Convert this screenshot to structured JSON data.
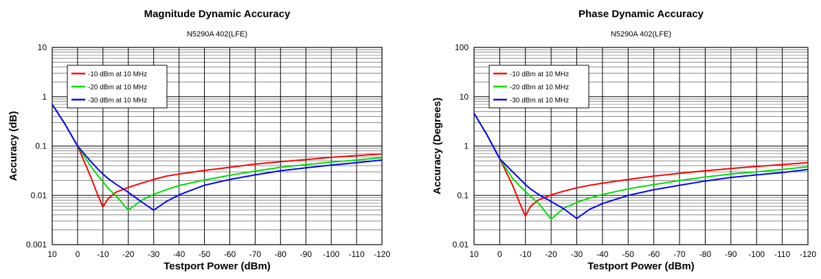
{
  "chart_data": [
    {
      "type": "line",
      "title": "Magnitude Dynamic Accuracy",
      "subtitle": "N5290A 402(LFE)",
      "xlabel": "Testport Power (dBm)",
      "ylabel": "Accuracy (dB)",
      "y_scale": "log",
      "ylim": [
        0.001,
        10
      ],
      "xlim": [
        10,
        -120
      ],
      "x_ticks": [
        10,
        0,
        -10,
        -20,
        -30,
        -40,
        -50,
        -60,
        -70,
        -80,
        -90,
        -100,
        -110,
        -120
      ],
      "x_tick_labels": [
        "10",
        "0",
        "-10",
        "-20",
        "-30",
        "-40",
        "-50",
        "-60",
        "-70",
        "-80",
        "-90",
        "-100",
        "-110",
        "-120"
      ],
      "y_ticks": [
        0.001,
        0.01,
        0.1,
        1,
        10
      ],
      "y_tick_labels": [
        "0.001",
        "0.01",
        "0.1",
        "1",
        "10"
      ],
      "grid": true,
      "legend_position": "top-left",
      "x": [
        10,
        5,
        0,
        -5,
        -8,
        -10,
        -12,
        -15,
        -20,
        -25,
        -30,
        -35,
        -40,
        -50,
        -60,
        -70,
        -80,
        -90,
        -100,
        -110,
        -120
      ],
      "series": [
        {
          "name": "-10 dBm at 10 MHz",
          "color": "#ff0000",
          "values": [
            0.7,
            0.28,
            0.1,
            0.025,
            0.01,
            0.0058,
            0.0085,
            0.0115,
            0.0145,
            0.0175,
            0.021,
            0.0245,
            0.027,
            0.032,
            0.037,
            0.043,
            0.048,
            0.053,
            0.059,
            0.064,
            0.069
          ]
        },
        {
          "name": "-20 dBm at 10 MHz",
          "color": "#00dd00",
          "values": [
            0.7,
            0.28,
            0.1,
            0.04,
            0.025,
            0.019,
            0.014,
            0.01,
            0.005,
            0.0078,
            0.0105,
            0.013,
            0.0158,
            0.0205,
            0.0255,
            0.031,
            0.037,
            0.042,
            0.047,
            0.052,
            0.058
          ]
        },
        {
          "name": "-30 dBm at 10 MHz",
          "color": "#0000ff",
          "values": [
            0.7,
            0.28,
            0.1,
            0.05,
            0.034,
            0.027,
            0.022,
            0.017,
            0.0115,
            0.0075,
            0.005,
            0.0075,
            0.0102,
            0.016,
            0.021,
            0.026,
            0.0315,
            0.036,
            0.041,
            0.046,
            0.052
          ]
        }
      ]
    },
    {
      "type": "line",
      "title": "Phase Dynamic Accuracy",
      "subtitle": "N5290A 402(LFE)",
      "xlabel": "Testport Power (dBm)",
      "ylabel": "Accuracy (Degrees)",
      "y_scale": "log",
      "ylim": [
        0.01,
        100
      ],
      "xlim": [
        10,
        -120
      ],
      "x_ticks": [
        10,
        0,
        -10,
        -20,
        -30,
        -40,
        -50,
        -60,
        -70,
        -80,
        -90,
        -100,
        -110,
        -120
      ],
      "x_tick_labels": [
        "10",
        "0",
        "-10",
        "-20",
        "-30",
        "-40",
        "-50",
        "-60",
        "-70",
        "-80",
        "-90",
        "-100",
        "-110",
        "-120"
      ],
      "y_ticks": [
        0.01,
        0.1,
        1,
        10,
        100
      ],
      "y_tick_labels": [
        "0.01",
        "0.1",
        "1",
        "10",
        "100"
      ],
      "grid": true,
      "legend_position": "top-left",
      "x": [
        10,
        5,
        0,
        -5,
        -8,
        -10,
        -12,
        -15,
        -20,
        -25,
        -30,
        -35,
        -40,
        -50,
        -60,
        -70,
        -80,
        -90,
        -100,
        -110,
        -120
      ],
      "series": [
        {
          "name": "-10 dBm at 10 MHz",
          "color": "#ff0000",
          "values": [
            4.6,
            1.7,
            0.55,
            0.16,
            0.065,
            0.038,
            0.06,
            0.08,
            0.102,
            0.122,
            0.142,
            0.16,
            0.176,
            0.21,
            0.245,
            0.28,
            0.315,
            0.35,
            0.385,
            0.42,
            0.46
          ]
        },
        {
          "name": "-20 dBm at 10 MHz",
          "color": "#00dd00",
          "values": [
            4.6,
            1.7,
            0.55,
            0.22,
            0.15,
            0.12,
            0.095,
            0.07,
            0.033,
            0.055,
            0.072,
            0.088,
            0.104,
            0.135,
            0.165,
            0.2,
            0.235,
            0.27,
            0.3,
            0.335,
            0.38
          ]
        },
        {
          "name": "-30 dBm at 10 MHz",
          "color": "#0000ff",
          "values": [
            4.6,
            1.7,
            0.55,
            0.3,
            0.21,
            0.165,
            0.135,
            0.105,
            0.075,
            0.053,
            0.034,
            0.052,
            0.068,
            0.1,
            0.13,
            0.16,
            0.195,
            0.23,
            0.26,
            0.29,
            0.335
          ]
        }
      ]
    }
  ]
}
